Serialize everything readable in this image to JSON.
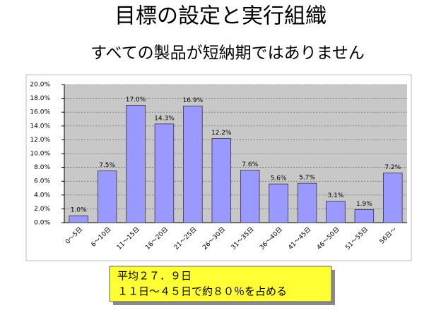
{
  "chart_data": {
    "type": "bar",
    "title": "目標の設定と実行組織",
    "subtitle": "すべての製品が短納期ではありません",
    "categories": [
      "0～5日",
      "6～10日",
      "11～15日",
      "16～20日",
      "21～25日",
      "26～30日",
      "31～35日",
      "36～40日",
      "41～45日",
      "46～50日",
      "51～55日",
      "56日～"
    ],
    "values": [
      1.0,
      7.5,
      17.0,
      14.3,
      16.9,
      12.2,
      7.6,
      5.6,
      5.7,
      3.1,
      1.9,
      7.2
    ],
    "value_labels": [
      "1.0%",
      "7.5%",
      "17.0%",
      "14.3%",
      "16.9%",
      "12.2%",
      "7.6%",
      "5.6%",
      "5.7%",
      "3.1%",
      "1.9%",
      "7.2%"
    ],
    "color": "#9999ff",
    "ylim": [
      0,
      20
    ],
    "yticks": [
      {
        "value": 0,
        "label": "0.0%"
      },
      {
        "value": 2,
        "label": "2.0%"
      },
      {
        "value": 4,
        "label": "4.0%"
      },
      {
        "value": 6,
        "label": "6.0%"
      },
      {
        "value": 8,
        "label": "8.0%"
      },
      {
        "value": 10,
        "label": "10.0%"
      },
      {
        "value": 12,
        "label": "12.0%"
      },
      {
        "value": 14,
        "label": "14.0%"
      },
      {
        "value": 16,
        "label": "16.0%"
      },
      {
        "value": 18,
        "label": "18.0%"
      },
      {
        "value": 20,
        "label": "20.0%"
      }
    ],
    "grid": true
  },
  "note": {
    "lines": [
      "平均２７．９日",
      "１１日～４５日で約８０％を占める"
    ]
  }
}
